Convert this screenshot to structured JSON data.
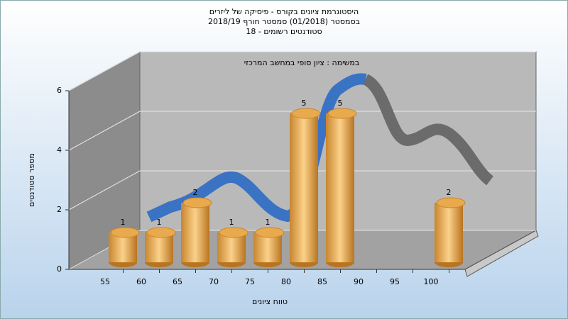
{
  "chart_data": {
    "type": "bar",
    "title": [
      "היסטוגרמת ציונים בקורס - פיסיקה של ליזרים",
      "בסמסטר  (01/2018)  סמסטר חורף 2018/19",
      "סטודנטים רשומים - 18"
    ],
    "subtitle": "במשימה : ציון סופי במחשב המרכזי",
    "x_label": "טווח ציונים",
    "y_label": "מספר סטודנטים",
    "categories": [
      "55",
      "60",
      "65",
      "70",
      "75",
      "80",
      "85",
      "90",
      "95",
      "100"
    ],
    "values": [
      1,
      1,
      2,
      1,
      1,
      5,
      5,
      null,
      null,
      2
    ],
    "color": "#e3a850",
    "ylim": [
      0,
      6
    ],
    "yticks": [
      0,
      2,
      4,
      6
    ],
    "grid": true
  }
}
